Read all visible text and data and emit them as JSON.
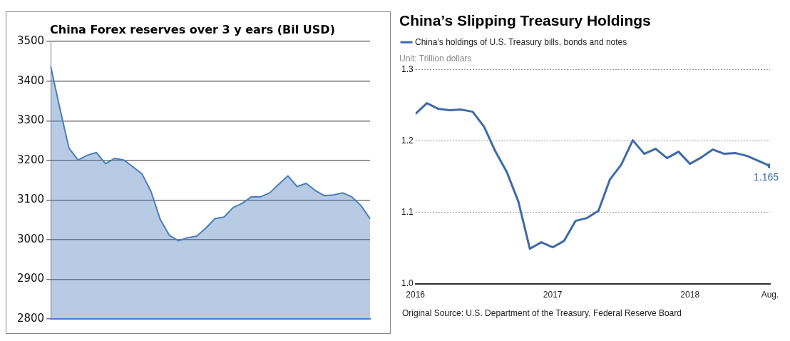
{
  "chart_data": [
    {
      "type": "area",
      "title": "China Forex reserves over 3 y ears (Bil USD)",
      "categories": [
        null,
        null,
        null,
        null,
        null,
        null,
        null,
        null,
        null,
        null,
        null,
        null,
        null,
        null,
        null,
        null,
        null,
        null,
        null,
        null,
        null,
        null,
        null,
        null,
        null,
        null,
        null,
        null,
        null,
        null,
        null,
        null,
        null,
        null,
        null,
        null
      ],
      "values": [
        3437,
        3331,
        3231,
        3201,
        3213,
        3220,
        3192,
        3205,
        3201,
        3184,
        3166,
        3121,
        3051,
        3011,
        2997,
        3005,
        3009,
        3029,
        3053,
        3057,
        3081,
        3092,
        3108,
        3108,
        3118,
        3140,
        3161,
        3134,
        3142,
        3124,
        3111,
        3113,
        3118,
        3108,
        3086,
        3053
      ],
      "color": "#4a7ebb",
      "ylim": [
        2800,
        3500
      ],
      "yticks": [
        2800,
        2900,
        3000,
        3100,
        3200,
        3300,
        3400,
        3500
      ],
      "grid": "y"
    },
    {
      "type": "line",
      "title": "China’s Slipping Treasury Holdings",
      "subtitle": "Unit: Trillion dollars",
      "x": [
        "2016-01",
        "2016-02",
        "2016-03",
        "2016-04",
        "2016-05",
        "2016-06",
        "2016-07",
        "2016-08",
        "2016-09",
        "2016-10",
        "2016-11",
        "2016-12",
        "2017-01",
        "2017-02",
        "2017-03",
        "2017-04",
        "2017-05",
        "2017-06",
        "2017-07",
        "2017-08",
        "2017-09",
        "2017-10",
        "2017-11",
        "2017-12",
        "2018-01",
        "2018-02",
        "2018-03",
        "2018-04",
        "2018-05",
        "2018-06",
        "2018-07",
        "2018-08"
      ],
      "series": [
        {
          "name": "China’s holdings of U.S. Treasury bills, bonds and notes",
          "color": "#3e6aa8",
          "values": [
            1.238,
            1.253,
            1.245,
            1.243,
            1.244,
            1.241,
            1.22,
            1.185,
            1.156,
            1.115,
            1.049,
            1.058,
            1.051,
            1.06,
            1.088,
            1.092,
            1.102,
            1.146,
            1.167,
            1.201,
            1.182,
            1.189,
            1.176,
            1.185,
            1.168,
            1.177,
            1.188,
            1.182,
            1.183,
            1.179,
            1.172,
            1.165
          ],
          "value_labels": [
            null,
            null,
            null,
            null,
            null,
            null,
            null,
            null,
            null,
            null,
            null,
            null,
            null,
            null,
            null,
            null,
            null,
            null,
            null,
            null,
            null,
            null,
            null,
            null,
            null,
            null,
            null,
            null,
            null,
            null,
            null,
            "1.165"
          ]
        }
      ],
      "xlim": [
        "2016-01",
        "2018-08"
      ],
      "xticks": [
        {
          "value": "2016-01",
          "label": "2016"
        },
        {
          "value": "2017-01",
          "label": "2017"
        },
        {
          "value": "2018-01",
          "label": "2018"
        },
        {
          "value": "2018-08",
          "label": "Aug."
        }
      ],
      "ylim": [
        1.0,
        1.3
      ],
      "yticks": [
        {
          "value": 1.0,
          "label": "1.0"
        },
        1.1,
        1.2,
        1.3
      ],
      "grid": "y",
      "legend": "top left",
      "annotations": [
        "Original Source: U.S. Department of the Treasury, Federal Reserve Board"
      ]
    }
  ]
}
